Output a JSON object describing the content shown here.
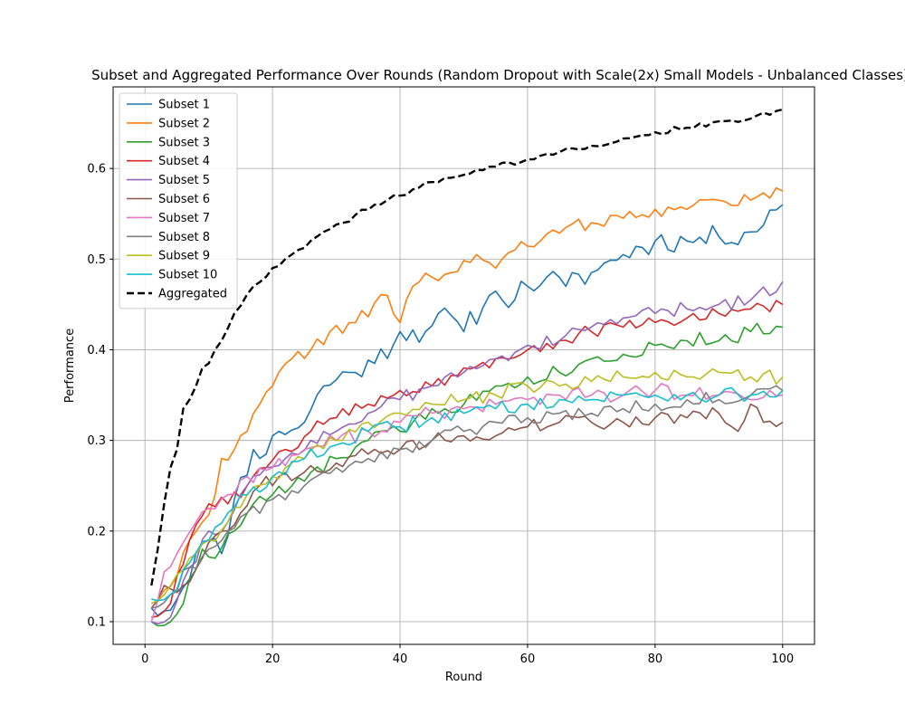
{
  "chart_data": {
    "type": "line",
    "title": "Subset and Aggregated Performance Over Rounds (Random Dropout with Scale(2x) Small Models - Unbalanced Classes)",
    "xlabel": "Round",
    "ylabel": "Performance",
    "xlim": [
      -5,
      105
    ],
    "ylim": [
      0.075,
      0.69
    ],
    "xticks": [
      0,
      20,
      40,
      60,
      80,
      100
    ],
    "yticks": [
      0.1,
      0.2,
      0.3,
      0.4,
      0.5,
      0.6
    ],
    "ytick_labels": [
      "0.1",
      "0.2",
      "0.3",
      "0.4",
      "0.5",
      "0.6"
    ],
    "grid": true,
    "legend_position": "upper-left",
    "x_range": [
      1,
      100
    ],
    "series": [
      {
        "name": "Subset 1",
        "color": "#1f77b4",
        "style": "solid",
        "anchors": [
          [
            1,
            0.115
          ],
          [
            3,
            0.112
          ],
          [
            5,
            0.125
          ],
          [
            8,
            0.175
          ],
          [
            10,
            0.19
          ],
          [
            12,
            0.175
          ],
          [
            14,
            0.235
          ],
          [
            17,
            0.29
          ],
          [
            19,
            0.285
          ],
          [
            21,
            0.31
          ],
          [
            25,
            0.32
          ],
          [
            28,
            0.36
          ],
          [
            32,
            0.375
          ],
          [
            36,
            0.385
          ],
          [
            40,
            0.42
          ],
          [
            44,
            0.42
          ],
          [
            46,
            0.44
          ],
          [
            50,
            0.42
          ],
          [
            54,
            0.46
          ],
          [
            56,
            0.455
          ],
          [
            60,
            0.47
          ],
          [
            63,
            0.48
          ],
          [
            66,
            0.47
          ],
          [
            70,
            0.485
          ],
          [
            75,
            0.505
          ],
          [
            80,
            0.52
          ],
          [
            85,
            0.52
          ],
          [
            90,
            0.525
          ],
          [
            95,
            0.53
          ],
          [
            100,
            0.56
          ]
        ],
        "noise": 0.013,
        "seed": 11
      },
      {
        "name": "Subset 2",
        "color": "#ff7f0e",
        "style": "solid",
        "anchors": [
          [
            1,
            0.12
          ],
          [
            3,
            0.135
          ],
          [
            5,
            0.15
          ],
          [
            7,
            0.19
          ],
          [
            9,
            0.21
          ],
          [
            11,
            0.24
          ],
          [
            12,
            0.28
          ],
          [
            14,
            0.29
          ],
          [
            16,
            0.31
          ],
          [
            18,
            0.34
          ],
          [
            20,
            0.36
          ],
          [
            23,
            0.39
          ],
          [
            26,
            0.4
          ],
          [
            29,
            0.42
          ],
          [
            33,
            0.43
          ],
          [
            38,
            0.46
          ],
          [
            40,
            0.43
          ],
          [
            42,
            0.47
          ],
          [
            45,
            0.48
          ],
          [
            48,
            0.485
          ],
          [
            52,
            0.505
          ],
          [
            55,
            0.49
          ],
          [
            58,
            0.51
          ],
          [
            62,
            0.52
          ],
          [
            66,
            0.535
          ],
          [
            70,
            0.54
          ],
          [
            75,
            0.545
          ],
          [
            80,
            0.555
          ],
          [
            85,
            0.555
          ],
          [
            90,
            0.565
          ],
          [
            95,
            0.565
          ],
          [
            100,
            0.575
          ]
        ],
        "noise": 0.008,
        "seed": 22
      },
      {
        "name": "Subset 3",
        "color": "#2ca02c",
        "style": "solid",
        "anchors": [
          [
            1,
            0.1
          ],
          [
            4,
            0.1
          ],
          [
            6,
            0.12
          ],
          [
            9,
            0.18
          ],
          [
            11,
            0.17
          ],
          [
            14,
            0.2
          ],
          [
            17,
            0.23
          ],
          [
            20,
            0.24
          ],
          [
            25,
            0.255
          ],
          [
            30,
            0.28
          ],
          [
            35,
            0.3
          ],
          [
            40,
            0.31
          ],
          [
            45,
            0.335
          ],
          [
            50,
            0.34
          ],
          [
            55,
            0.36
          ],
          [
            60,
            0.37
          ],
          [
            65,
            0.375
          ],
          [
            70,
            0.39
          ],
          [
            75,
            0.395
          ],
          [
            80,
            0.405
          ],
          [
            85,
            0.41
          ],
          [
            90,
            0.41
          ],
          [
            95,
            0.42
          ],
          [
            100,
            0.425
          ]
        ],
        "noise": 0.009,
        "seed": 33
      },
      {
        "name": "Subset 4",
        "color": "#d62728",
        "style": "solid",
        "anchors": [
          [
            1,
            0.105
          ],
          [
            4,
            0.12
          ],
          [
            7,
            0.19
          ],
          [
            10,
            0.23
          ],
          [
            13,
            0.23
          ],
          [
            16,
            0.25
          ],
          [
            19,
            0.27
          ],
          [
            22,
            0.29
          ],
          [
            26,
            0.31
          ],
          [
            30,
            0.325
          ],
          [
            35,
            0.34
          ],
          [
            40,
            0.355
          ],
          [
            45,
            0.36
          ],
          [
            50,
            0.38
          ],
          [
            55,
            0.39
          ],
          [
            60,
            0.4
          ],
          [
            65,
            0.41
          ],
          [
            70,
            0.42
          ],
          [
            75,
            0.425
          ],
          [
            80,
            0.43
          ],
          [
            85,
            0.435
          ],
          [
            90,
            0.44
          ],
          [
            95,
            0.445
          ],
          [
            100,
            0.45
          ]
        ],
        "noise": 0.008,
        "seed": 44
      },
      {
        "name": "Subset 5",
        "color": "#9467bd",
        "style": "solid",
        "anchors": [
          [
            1,
            0.1
          ],
          [
            4,
            0.105
          ],
          [
            7,
            0.16
          ],
          [
            10,
            0.2
          ],
          [
            13,
            0.21
          ],
          [
            16,
            0.25
          ],
          [
            19,
            0.27
          ],
          [
            22,
            0.28
          ],
          [
            26,
            0.3
          ],
          [
            30,
            0.31
          ],
          [
            35,
            0.33
          ],
          [
            40,
            0.345
          ],
          [
            45,
            0.36
          ],
          [
            50,
            0.375
          ],
          [
            55,
            0.39
          ],
          [
            60,
            0.405
          ],
          [
            65,
            0.41
          ],
          [
            70,
            0.425
          ],
          [
            75,
            0.435
          ],
          [
            80,
            0.44
          ],
          [
            85,
            0.445
          ],
          [
            90,
            0.45
          ],
          [
            95,
            0.455
          ],
          [
            100,
            0.475
          ]
        ],
        "noise": 0.008,
        "seed": 55
      },
      {
        "name": "Subset 6",
        "color": "#8c564b",
        "style": "solid",
        "anchors": [
          [
            1,
            0.115
          ],
          [
            3,
            0.14
          ],
          [
            6,
            0.14
          ],
          [
            9,
            0.17
          ],
          [
            12,
            0.2
          ],
          [
            15,
            0.22
          ],
          [
            18,
            0.25
          ],
          [
            21,
            0.26
          ],
          [
            25,
            0.265
          ],
          [
            30,
            0.275
          ],
          [
            35,
            0.285
          ],
          [
            40,
            0.29
          ],
          [
            45,
            0.3
          ],
          [
            50,
            0.305
          ],
          [
            55,
            0.305
          ],
          [
            60,
            0.315
          ],
          [
            65,
            0.32
          ],
          [
            70,
            0.32
          ],
          [
            75,
            0.32
          ],
          [
            80,
            0.325
          ],
          [
            85,
            0.325
          ],
          [
            90,
            0.33
          ],
          [
            93,
            0.31
          ],
          [
            95,
            0.34
          ],
          [
            97,
            0.32
          ],
          [
            100,
            0.32
          ]
        ],
        "noise": 0.008,
        "seed": 66
      },
      {
        "name": "Subset 7",
        "color": "#e377c2",
        "style": "solid",
        "anchors": [
          [
            1,
            0.1
          ],
          [
            3,
            0.155
          ],
          [
            5,
            0.175
          ],
          [
            8,
            0.21
          ],
          [
            10,
            0.225
          ],
          [
            13,
            0.24
          ],
          [
            16,
            0.26
          ],
          [
            20,
            0.27
          ],
          [
            25,
            0.29
          ],
          [
            30,
            0.3
          ],
          [
            35,
            0.31
          ],
          [
            40,
            0.32
          ],
          [
            45,
            0.33
          ],
          [
            50,
            0.335
          ],
          [
            55,
            0.34
          ],
          [
            60,
            0.345
          ],
          [
            65,
            0.35
          ],
          [
            70,
            0.35
          ],
          [
            75,
            0.35
          ],
          [
            80,
            0.355
          ],
          [
            85,
            0.35
          ],
          [
            90,
            0.35
          ],
          [
            95,
            0.345
          ],
          [
            100,
            0.35
          ]
        ],
        "noise": 0.009,
        "seed": 77
      },
      {
        "name": "Subset 8",
        "color": "#7f7f7f",
        "style": "solid",
        "anchors": [
          [
            1,
            0.115
          ],
          [
            4,
            0.13
          ],
          [
            7,
            0.16
          ],
          [
            10,
            0.18
          ],
          [
            13,
            0.2
          ],
          [
            16,
            0.22
          ],
          [
            20,
            0.235
          ],
          [
            25,
            0.25
          ],
          [
            30,
            0.27
          ],
          [
            35,
            0.28
          ],
          [
            40,
            0.29
          ],
          [
            45,
            0.3
          ],
          [
            50,
            0.31
          ],
          [
            55,
            0.32
          ],
          [
            60,
            0.325
          ],
          [
            65,
            0.33
          ],
          [
            70,
            0.33
          ],
          [
            75,
            0.335
          ],
          [
            80,
            0.34
          ],
          [
            85,
            0.345
          ],
          [
            90,
            0.345
          ],
          [
            95,
            0.35
          ],
          [
            100,
            0.355
          ]
        ],
        "noise": 0.008,
        "seed": 88
      },
      {
        "name": "Subset 9",
        "color": "#bcbd22",
        "style": "solid",
        "anchors": [
          [
            1,
            0.12
          ],
          [
            4,
            0.14
          ],
          [
            7,
            0.17
          ],
          [
            10,
            0.19
          ],
          [
            13,
            0.21
          ],
          [
            16,
            0.24
          ],
          [
            20,
            0.26
          ],
          [
            25,
            0.28
          ],
          [
            30,
            0.3
          ],
          [
            35,
            0.32
          ],
          [
            40,
            0.33
          ],
          [
            45,
            0.34
          ],
          [
            50,
            0.345
          ],
          [
            55,
            0.35
          ],
          [
            60,
            0.36
          ],
          [
            65,
            0.36
          ],
          [
            70,
            0.365
          ],
          [
            75,
            0.37
          ],
          [
            80,
            0.375
          ],
          [
            85,
            0.37
          ],
          [
            90,
            0.375
          ],
          [
            95,
            0.37
          ],
          [
            100,
            0.37
          ]
        ],
        "noise": 0.008,
        "seed": 99
      },
      {
        "name": "Subset 10",
        "color": "#17becf",
        "style": "solid",
        "anchors": [
          [
            1,
            0.125
          ],
          [
            4,
            0.13
          ],
          [
            7,
            0.165
          ],
          [
            10,
            0.19
          ],
          [
            13,
            0.22
          ],
          [
            16,
            0.24
          ],
          [
            20,
            0.26
          ],
          [
            25,
            0.28
          ],
          [
            30,
            0.295
          ],
          [
            35,
            0.31
          ],
          [
            40,
            0.315
          ],
          [
            45,
            0.325
          ],
          [
            50,
            0.33
          ],
          [
            55,
            0.335
          ],
          [
            60,
            0.34
          ],
          [
            65,
            0.345
          ],
          [
            70,
            0.345
          ],
          [
            75,
            0.35
          ],
          [
            80,
            0.35
          ],
          [
            85,
            0.35
          ],
          [
            90,
            0.35
          ],
          [
            95,
            0.35
          ],
          [
            100,
            0.355
          ]
        ],
        "noise": 0.008,
        "seed": 110
      },
      {
        "name": "Aggregated",
        "color": "#000000",
        "style": "dashed",
        "anchors": [
          [
            1,
            0.14
          ],
          [
            2,
            0.18
          ],
          [
            3,
            0.23
          ],
          [
            4,
            0.27
          ],
          [
            5,
            0.29
          ],
          [
            6,
            0.335
          ],
          [
            7,
            0.345
          ],
          [
            8,
            0.36
          ],
          [
            9,
            0.38
          ],
          [
            10,
            0.385
          ],
          [
            11,
            0.4
          ],
          [
            12,
            0.41
          ],
          [
            14,
            0.44
          ],
          [
            17,
            0.47
          ],
          [
            20,
            0.49
          ],
          [
            23,
            0.505
          ],
          [
            27,
            0.525
          ],
          [
            31,
            0.54
          ],
          [
            36,
            0.56
          ],
          [
            40,
            0.57
          ],
          [
            45,
            0.585
          ],
          [
            50,
            0.593
          ],
          [
            55,
            0.602
          ],
          [
            60,
            0.61
          ],
          [
            65,
            0.618
          ],
          [
            70,
            0.625
          ],
          [
            75,
            0.633
          ],
          [
            80,
            0.64
          ],
          [
            85,
            0.645
          ],
          [
            90,
            0.652
          ],
          [
            95,
            0.655
          ],
          [
            100,
            0.665
          ]
        ],
        "noise": 0.003,
        "seed": 121
      }
    ]
  }
}
